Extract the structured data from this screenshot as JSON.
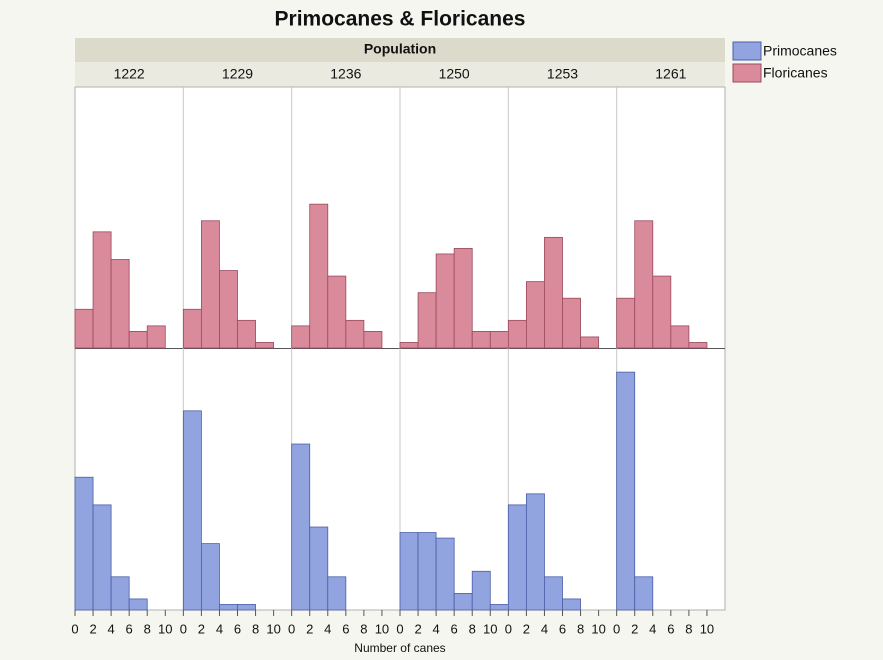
{
  "chart_data": {
    "type": "histogram",
    "title": "Primocanes & Floricanes",
    "facet_title": "Population",
    "facets": [
      "1222",
      "1229",
      "1236",
      "1250",
      "1253",
      "1261"
    ],
    "xlabel": "Number of canes",
    "bins": [
      0,
      2,
      4,
      6,
      8,
      10,
      12
    ],
    "xlim": [
      0,
      12
    ],
    "xticks": [
      0,
      2,
      4,
      6,
      8,
      10
    ],
    "ylim": [
      0,
      47
    ],
    "series": [
      {
        "name": "Primocanes",
        "color": "#91a4e0",
        "values": [
          [
            24,
            19,
            6,
            2,
            0,
            0
          ],
          [
            36,
            12,
            1,
            1,
            0,
            0
          ],
          [
            30,
            15,
            6,
            0,
            0,
            0
          ],
          [
            14,
            14,
            13,
            3,
            7,
            1
          ],
          [
            19,
            21,
            6,
            2,
            0,
            0
          ],
          [
            43,
            6,
            0,
            0,
            0,
            0
          ]
        ]
      },
      {
        "name": "Floricanes",
        "color": "#d98a9b",
        "values": [
          [
            7,
            21,
            16,
            3,
            4,
            0
          ],
          [
            7,
            23,
            14,
            5,
            1,
            0
          ],
          [
            4,
            26,
            13,
            5,
            3,
            0
          ],
          [
            1,
            10,
            17,
            18,
            3,
            3
          ],
          [
            5,
            12,
            20,
            9,
            2,
            0
          ],
          [
            9,
            23,
            13,
            4,
            1,
            0
          ]
        ]
      }
    ]
  }
}
